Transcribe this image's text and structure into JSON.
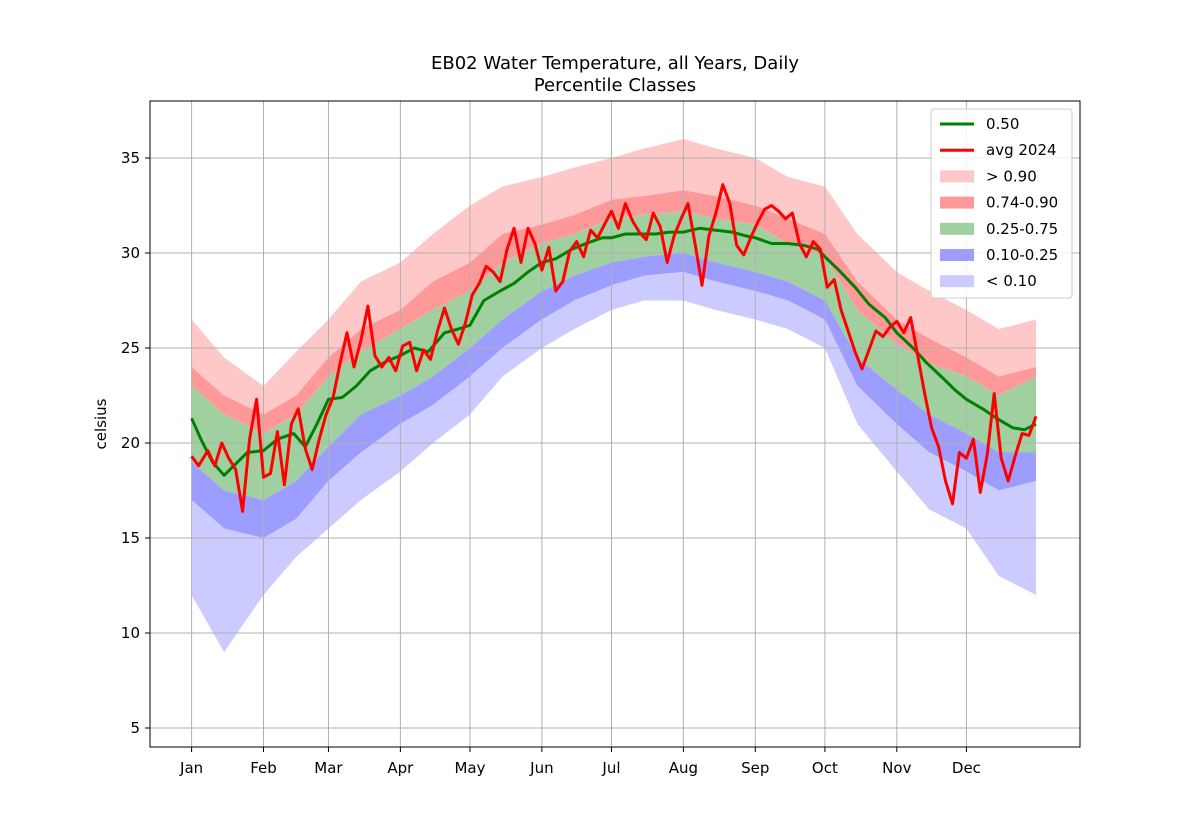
{
  "chart_data": {
    "type": "area",
    "title": "EB02 Water Temperature, all Years, Daily",
    "subtitle": "Percentile Classes",
    "xlabel": "",
    "ylabel": "celsius",
    "ylim": [
      4,
      38
    ],
    "yticks": [
      5,
      10,
      15,
      20,
      25,
      30,
      35
    ],
    "x_tick_labels": [
      "Jan",
      "Feb",
      "Mar",
      "Apr",
      "May",
      "Jun",
      "Jul",
      "Aug",
      "Sep",
      "Oct",
      "Nov",
      "Dec"
    ],
    "grid": true,
    "legend_position": "top-right",
    "colors": {
      "p50": "#008000",
      "avg2024": "#ff0000",
      "gt090": "#ffc8c8",
      "b074_090": "#ff9999",
      "b025_075": "#a0d0a0",
      "b010_025": "#9d9dff",
      "lt010": "#cbcbff"
    },
    "legend": [
      {
        "key": "p50",
        "label": "0.50",
        "kind": "line"
      },
      {
        "key": "avg2024",
        "label": "avg 2024",
        "kind": "line"
      },
      {
        "key": "gt090",
        "label": "> 0.90",
        "kind": "patch"
      },
      {
        "key": "b074_090",
        "label": "0.74-0.90",
        "kind": "patch"
      },
      {
        "key": "b025_075",
        "label": "0.25-0.75",
        "kind": "patch"
      },
      {
        "key": "b010_025",
        "label": "0.10-0.25",
        "kind": "patch"
      },
      {
        "key": "lt010",
        "label": "< 0.10",
        "kind": "patch"
      }
    ],
    "x_day_of_year": [
      1,
      15,
      32,
      46,
      60,
      74,
      91,
      105,
      121,
      135,
      152,
      166,
      182,
      196,
      213,
      227,
      244,
      258,
      274,
      288,
      305,
      319,
      335,
      349,
      365
    ],
    "band_max": [
      26.5,
      24.5,
      23.0,
      24.8,
      26.5,
      28.5,
      29.5,
      31.0,
      32.5,
      33.5,
      34.0,
      34.5,
      35.0,
      35.5,
      36.0,
      35.5,
      35.0,
      34.0,
      33.5,
      31.0,
      29.0,
      28.0,
      27.0,
      26.0,
      26.5
    ],
    "band_p90": [
      24.0,
      22.5,
      21.5,
      22.5,
      24.5,
      26.0,
      27.0,
      28.5,
      29.5,
      31.0,
      31.5,
      32.0,
      32.8,
      33.0,
      33.3,
      33.0,
      32.5,
      31.8,
      31.0,
      28.5,
      26.5,
      25.5,
      24.5,
      23.5,
      24.0
    ],
    "band_p75": [
      23.0,
      21.5,
      20.5,
      21.5,
      23.5,
      24.8,
      26.0,
      27.0,
      28.0,
      29.5,
      30.5,
      31.0,
      31.8,
      32.0,
      32.2,
      31.8,
      31.5,
      30.5,
      29.8,
      27.0,
      25.2,
      24.2,
      23.5,
      22.5,
      23.5
    ],
    "band_p25": [
      19.0,
      17.5,
      17.0,
      18.0,
      19.8,
      21.5,
      22.5,
      23.5,
      25.0,
      26.5,
      28.0,
      28.8,
      29.5,
      29.8,
      30.0,
      29.5,
      29.0,
      28.5,
      27.5,
      24.5,
      22.8,
      21.5,
      20.5,
      19.5,
      19.5
    ],
    "band_p10": [
      17.0,
      15.5,
      15.0,
      16.0,
      18.0,
      19.5,
      21.0,
      22.0,
      23.5,
      25.0,
      26.5,
      27.5,
      28.3,
      28.8,
      29.0,
      28.5,
      28.0,
      27.5,
      26.5,
      23.0,
      21.0,
      19.5,
      18.5,
      17.5,
      18.0
    ],
    "band_min": [
      12.0,
      9.0,
      12.0,
      14.0,
      15.5,
      17.0,
      18.5,
      20.0,
      21.5,
      23.5,
      25.0,
      26.0,
      27.0,
      27.5,
      27.5,
      27.0,
      26.5,
      26.0,
      25.0,
      21.0,
      18.5,
      16.5,
      15.5,
      13.0,
      12.0
    ],
    "series": [
      {
        "name": "0.50",
        "x": [
          1,
          5,
          10,
          15,
          20,
          25,
          32,
          38,
          45,
          50,
          55,
          60,
          66,
          72,
          78,
          85,
          91,
          97,
          103,
          110,
          116,
          121,
          127,
          134,
          140,
          146,
          152,
          158,
          165,
          171,
          178,
          182,
          188,
          195,
          201,
          207,
          213,
          220,
          227,
          234,
          240,
          244,
          251,
          258,
          265,
          271,
          274,
          280,
          287,
          293,
          300,
          305,
          312,
          318,
          325,
          330,
          335,
          342,
          348,
          355,
          360,
          365
        ],
        "values": [
          21.3,
          20.2,
          19.0,
          18.3,
          18.9,
          19.5,
          19.6,
          20.2,
          20.5,
          19.8,
          21.0,
          22.3,
          22.4,
          23.0,
          23.8,
          24.3,
          24.6,
          25.0,
          24.8,
          25.8,
          26.0,
          26.2,
          27.5,
          28.0,
          28.4,
          29.0,
          29.5,
          29.7,
          30.2,
          30.5,
          30.8,
          30.8,
          31.0,
          31.0,
          31.0,
          31.1,
          31.1,
          31.3,
          31.2,
          31.1,
          30.9,
          30.8,
          30.5,
          30.5,
          30.4,
          30.2,
          29.8,
          29.1,
          28.2,
          27.3,
          26.6,
          25.8,
          25.0,
          24.2,
          23.4,
          22.8,
          22.3,
          21.8,
          21.3,
          20.8,
          20.7,
          21.0
        ]
      },
      {
        "name": "avg 2024",
        "x": [
          1,
          4,
          8,
          11,
          14,
          17,
          20,
          23,
          26,
          29,
          32,
          35,
          38,
          41,
          44,
          47,
          50,
          53,
          56,
          59,
          62,
          65,
          68,
          71,
          74,
          77,
          80,
          83,
          86,
          89,
          92,
          95,
          98,
          101,
          104,
          107,
          110,
          113,
          116,
          119,
          122,
          125,
          128,
          131,
          134,
          137,
          140,
          143,
          146,
          149,
          152,
          155,
          158,
          161,
          164,
          167,
          170,
          173,
          176,
          179,
          182,
          185,
          188,
          191,
          194,
          197,
          200,
          203,
          206,
          209,
          212,
          215,
          218,
          221,
          224,
          227,
          230,
          233,
          236,
          239,
          242,
          245,
          248,
          251,
          254,
          257,
          260,
          263,
          266,
          269,
          272,
          275,
          278,
          281,
          284,
          287,
          290,
          293,
          296,
          299,
          302,
          305,
          308,
          311,
          314,
          317,
          320,
          323,
          326,
          329,
          332,
          335,
          338,
          341,
          344,
          347,
          350,
          353,
          356,
          359,
          362,
          365
        ],
        "values": [
          19.3,
          18.8,
          19.6,
          18.8,
          20.0,
          19.2,
          18.6,
          16.4,
          20.2,
          22.3,
          18.2,
          18.4,
          20.6,
          17.8,
          21.0,
          21.8,
          19.7,
          18.6,
          20.2,
          21.5,
          22.4,
          24.2,
          25.8,
          24.0,
          25.4,
          27.2,
          24.6,
          24.0,
          24.5,
          23.8,
          25.1,
          25.3,
          23.8,
          24.9,
          24.4,
          25.9,
          27.1,
          26.0,
          25.2,
          26.3,
          27.8,
          28.4,
          29.3,
          29.0,
          28.5,
          30.2,
          31.3,
          29.5,
          31.3,
          30.5,
          29.1,
          30.3,
          28.0,
          28.5,
          30.1,
          30.6,
          29.8,
          31.2,
          30.8,
          31.5,
          32.2,
          31.3,
          32.6,
          31.7,
          31.1,
          30.7,
          32.1,
          31.4,
          29.5,
          30.9,
          31.8,
          32.6,
          30.5,
          28.3,
          30.9,
          32.1,
          33.6,
          32.6,
          30.4,
          29.9,
          30.8,
          31.6,
          32.3,
          32.5,
          32.2,
          31.8,
          32.1,
          30.5,
          29.8,
          30.6,
          30.2,
          28.2,
          28.6,
          27.0,
          25.9,
          24.8,
          23.9,
          24.9,
          25.9,
          25.6,
          26.1,
          26.4,
          25.8,
          26.6,
          24.6,
          22.6,
          20.8,
          19.8,
          18.0,
          16.8,
          19.5,
          19.2,
          20.2,
          17.4,
          19.4,
          22.6,
          19.2,
          18.0,
          19.3,
          20.5,
          20.4,
          21.4
        ]
      }
    ]
  }
}
